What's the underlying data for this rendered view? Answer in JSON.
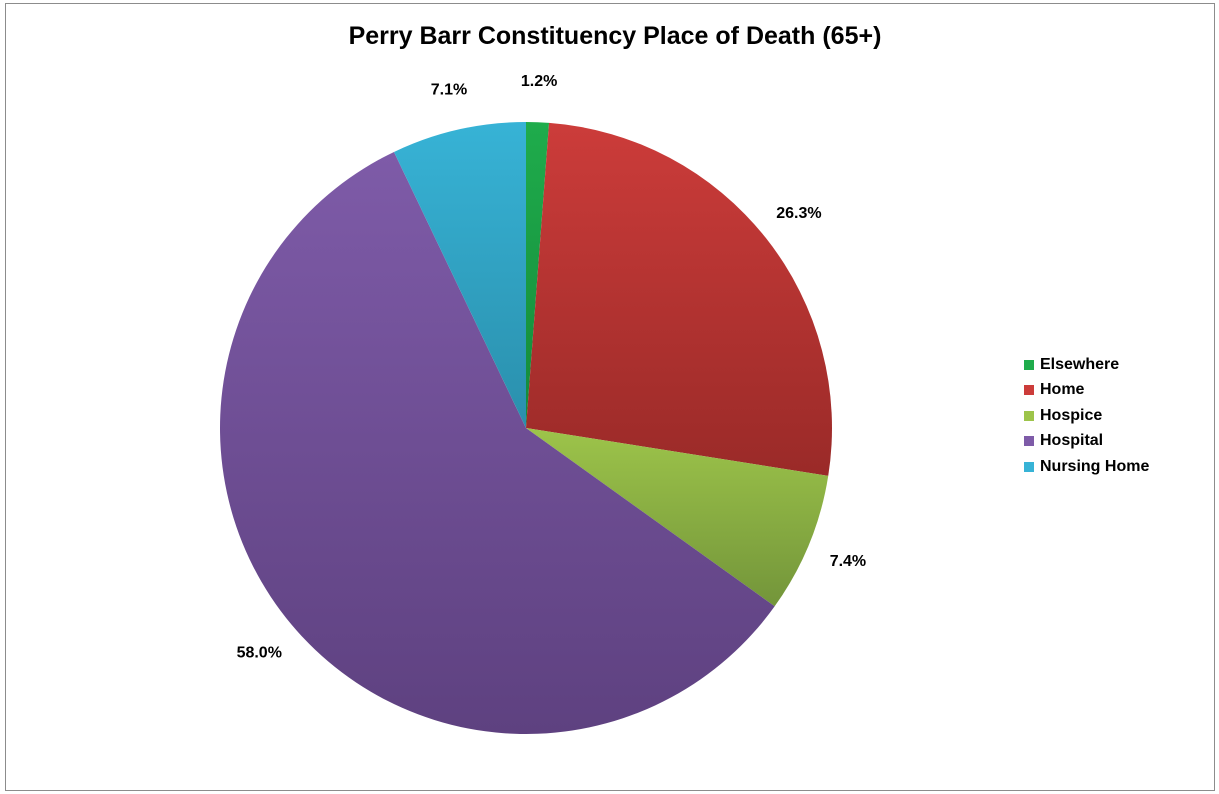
{
  "chart_data": {
    "type": "pie",
    "title": "Perry Barr Constituency Place of Death (65+)",
    "legend_position": "right",
    "slices": [
      {
        "label": "Elsewhere",
        "value": 1.2,
        "display": "1.2%",
        "color": "#1fac4c",
        "color_dark": "#148a3a"
      },
      {
        "label": "Home",
        "value": 26.3,
        "display": "26.3%",
        "color": "#cc3c3a",
        "color_dark": "#9a2a28"
      },
      {
        "label": "Hospice",
        "value": 7.4,
        "display": "7.4%",
        "color": "#9dc44a",
        "color_dark": "#73953a"
      },
      {
        "label": "Hospital",
        "value": 58.0,
        "display": "58.0%",
        "color": "#7e5ba8",
        "color_dark": "#5e4180"
      },
      {
        "label": "Nursing Home",
        "value": 7.1,
        "display": "7.1%",
        "color": "#37b3d6",
        "color_dark": "#2a8fac"
      }
    ]
  }
}
